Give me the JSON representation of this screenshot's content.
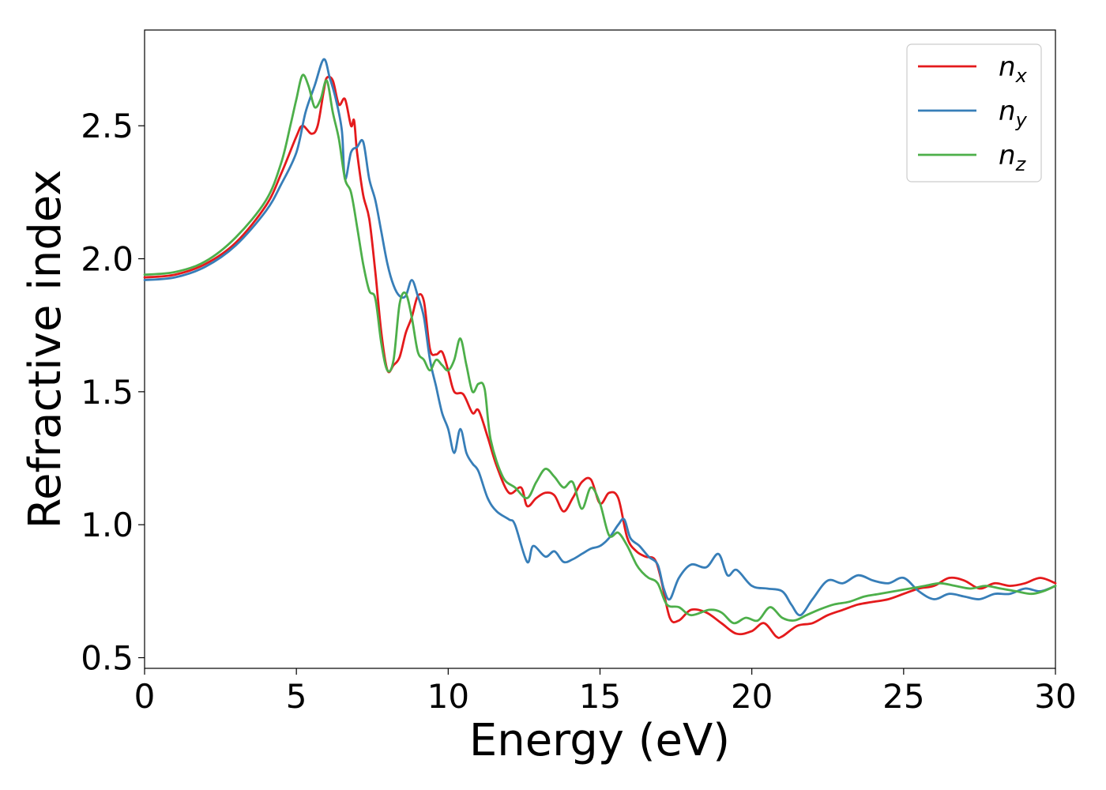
{
  "chart_data": {
    "type": "line",
    "title": "",
    "xlabel": "Energy (eV)",
    "ylabel": "Refractive index",
    "xlim": [
      0,
      30
    ],
    "ylim": [
      0.46,
      2.86
    ],
    "xticks": [
      0,
      5,
      10,
      15,
      20,
      25,
      30
    ],
    "yticks": [
      0.5,
      1.0,
      1.5,
      2.0,
      2.5
    ],
    "xtick_labels": [
      "0",
      "5",
      "10",
      "15",
      "20",
      "25",
      "30"
    ],
    "ytick_labels": [
      "0.5",
      "1.0",
      "1.5",
      "2.0",
      "2.5"
    ],
    "grid": false,
    "legend_position": "top-right",
    "series": [
      {
        "name": "n",
        "subscript": "x",
        "color": "#e41a1c",
        "points": [
          [
            0,
            1.93
          ],
          [
            1,
            1.94
          ],
          [
            2,
            1.98
          ],
          [
            3,
            2.06
          ],
          [
            4,
            2.2
          ],
          [
            4.5,
            2.32
          ],
          [
            5,
            2.46
          ],
          [
            5.2,
            2.5
          ],
          [
            5.5,
            2.47
          ],
          [
            5.7,
            2.5
          ],
          [
            5.9,
            2.63
          ],
          [
            6,
            2.68
          ],
          [
            6.2,
            2.67
          ],
          [
            6.4,
            2.58
          ],
          [
            6.6,
            2.6
          ],
          [
            6.8,
            2.5
          ],
          [
            6.9,
            2.52
          ],
          [
            7,
            2.4
          ],
          [
            7.2,
            2.24
          ],
          [
            7.4,
            2.15
          ],
          [
            7.6,
            1.95
          ],
          [
            7.8,
            1.72
          ],
          [
            8.0,
            1.58
          ],
          [
            8.2,
            1.6
          ],
          [
            8.4,
            1.63
          ],
          [
            8.6,
            1.72
          ],
          [
            8.8,
            1.78
          ],
          [
            9.0,
            1.86
          ],
          [
            9.2,
            1.84
          ],
          [
            9.4,
            1.66
          ],
          [
            9.6,
            1.64
          ],
          [
            9.8,
            1.65
          ],
          [
            10.0,
            1.58
          ],
          [
            10.2,
            1.5
          ],
          [
            10.5,
            1.49
          ],
          [
            10.8,
            1.42
          ],
          [
            11.0,
            1.43
          ],
          [
            11.3,
            1.33
          ],
          [
            11.6,
            1.22
          ],
          [
            12.0,
            1.12
          ],
          [
            12.4,
            1.14
          ],
          [
            12.6,
            1.07
          ],
          [
            12.9,
            1.1
          ],
          [
            13.2,
            1.12
          ],
          [
            13.5,
            1.11
          ],
          [
            13.8,
            1.05
          ],
          [
            14.1,
            1.1
          ],
          [
            14.4,
            1.16
          ],
          [
            14.7,
            1.17
          ],
          [
            15.0,
            1.08
          ],
          [
            15.3,
            1.12
          ],
          [
            15.6,
            1.1
          ],
          [
            15.9,
            0.95
          ],
          [
            16.2,
            0.9
          ],
          [
            16.5,
            0.88
          ],
          [
            16.8,
            0.87
          ],
          [
            17.0,
            0.8
          ],
          [
            17.3,
            0.65
          ],
          [
            17.6,
            0.64
          ],
          [
            18.0,
            0.68
          ],
          [
            18.5,
            0.67
          ],
          [
            19.0,
            0.63
          ],
          [
            19.5,
            0.59
          ],
          [
            20.0,
            0.6
          ],
          [
            20.4,
            0.63
          ],
          [
            20.8,
            0.58
          ],
          [
            21.0,
            0.58
          ],
          [
            21.5,
            0.62
          ],
          [
            22.0,
            0.63
          ],
          [
            22.5,
            0.66
          ],
          [
            23.0,
            0.68
          ],
          [
            23.5,
            0.7
          ],
          [
            24.0,
            0.71
          ],
          [
            24.5,
            0.72
          ],
          [
            25.0,
            0.74
          ],
          [
            25.5,
            0.76
          ],
          [
            26.0,
            0.77
          ],
          [
            26.5,
            0.8
          ],
          [
            27.0,
            0.79
          ],
          [
            27.5,
            0.76
          ],
          [
            28.0,
            0.78
          ],
          [
            28.5,
            0.77
          ],
          [
            29.0,
            0.78
          ],
          [
            29.5,
            0.8
          ],
          [
            30.0,
            0.78
          ]
        ]
      },
      {
        "name": "n",
        "subscript": "y",
        "color": "#377eb8",
        "points": [
          [
            0,
            1.92
          ],
          [
            1,
            1.93
          ],
          [
            2,
            1.97
          ],
          [
            3,
            2.05
          ],
          [
            4,
            2.18
          ],
          [
            4.5,
            2.28
          ],
          [
            5,
            2.4
          ],
          [
            5.3,
            2.55
          ],
          [
            5.6,
            2.65
          ],
          [
            5.9,
            2.75
          ],
          [
            6.1,
            2.68
          ],
          [
            6.3,
            2.6
          ],
          [
            6.5,
            2.48
          ],
          [
            6.6,
            2.3
          ],
          [
            6.8,
            2.4
          ],
          [
            7.0,
            2.42
          ],
          [
            7.2,
            2.44
          ],
          [
            7.4,
            2.3
          ],
          [
            7.6,
            2.22
          ],
          [
            7.8,
            2.1
          ],
          [
            8.0,
            1.98
          ],
          [
            8.2,
            1.9
          ],
          [
            8.4,
            1.86
          ],
          [
            8.6,
            1.86
          ],
          [
            8.8,
            1.92
          ],
          [
            9.0,
            1.86
          ],
          [
            9.2,
            1.78
          ],
          [
            9.4,
            1.62
          ],
          [
            9.6,
            1.52
          ],
          [
            9.8,
            1.42
          ],
          [
            10.0,
            1.36
          ],
          [
            10.2,
            1.27
          ],
          [
            10.4,
            1.36
          ],
          [
            10.6,
            1.27
          ],
          [
            10.8,
            1.23
          ],
          [
            11.0,
            1.2
          ],
          [
            11.3,
            1.1
          ],
          [
            11.6,
            1.05
          ],
          [
            12.0,
            1.02
          ],
          [
            12.2,
            1.0
          ],
          [
            12.6,
            0.86
          ],
          [
            12.8,
            0.92
          ],
          [
            13.2,
            0.88
          ],
          [
            13.5,
            0.9
          ],
          [
            13.8,
            0.86
          ],
          [
            14.1,
            0.87
          ],
          [
            14.4,
            0.89
          ],
          [
            14.7,
            0.91
          ],
          [
            15.0,
            0.92
          ],
          [
            15.3,
            0.95
          ],
          [
            15.6,
            1.0
          ],
          [
            15.8,
            1.02
          ],
          [
            16.0,
            0.95
          ],
          [
            16.3,
            0.92
          ],
          [
            16.6,
            0.88
          ],
          [
            16.9,
            0.85
          ],
          [
            17.1,
            0.76
          ],
          [
            17.3,
            0.72
          ],
          [
            17.6,
            0.8
          ],
          [
            18.0,
            0.85
          ],
          [
            18.5,
            0.84
          ],
          [
            18.9,
            0.89
          ],
          [
            19.2,
            0.81
          ],
          [
            19.5,
            0.83
          ],
          [
            20.0,
            0.77
          ],
          [
            20.5,
            0.76
          ],
          [
            21.0,
            0.75
          ],
          [
            21.3,
            0.7
          ],
          [
            21.6,
            0.66
          ],
          [
            22.0,
            0.72
          ],
          [
            22.5,
            0.79
          ],
          [
            23.0,
            0.78
          ],
          [
            23.5,
            0.81
          ],
          [
            24.0,
            0.79
          ],
          [
            24.5,
            0.78
          ],
          [
            25.0,
            0.8
          ],
          [
            25.5,
            0.75
          ],
          [
            26.0,
            0.72
          ],
          [
            26.5,
            0.74
          ],
          [
            27.0,
            0.73
          ],
          [
            27.5,
            0.72
          ],
          [
            28.0,
            0.74
          ],
          [
            28.5,
            0.74
          ],
          [
            29.0,
            0.76
          ],
          [
            29.5,
            0.75
          ],
          [
            30.0,
            0.77
          ]
        ]
      },
      {
        "name": "n",
        "subscript": "z",
        "color": "#4daf4a",
        "points": [
          [
            0,
            1.94
          ],
          [
            1,
            1.95
          ],
          [
            2,
            1.99
          ],
          [
            3,
            2.08
          ],
          [
            4,
            2.22
          ],
          [
            4.5,
            2.36
          ],
          [
            4.8,
            2.5
          ],
          [
            5.0,
            2.6
          ],
          [
            5.2,
            2.69
          ],
          [
            5.4,
            2.65
          ],
          [
            5.6,
            2.57
          ],
          [
            5.8,
            2.6
          ],
          [
            6.0,
            2.67
          ],
          [
            6.2,
            2.55
          ],
          [
            6.4,
            2.45
          ],
          [
            6.6,
            2.3
          ],
          [
            6.8,
            2.25
          ],
          [
            7.0,
            2.12
          ],
          [
            7.2,
            1.98
          ],
          [
            7.4,
            1.88
          ],
          [
            7.6,
            1.85
          ],
          [
            7.8,
            1.68
          ],
          [
            8.0,
            1.58
          ],
          [
            8.2,
            1.62
          ],
          [
            8.4,
            1.83
          ],
          [
            8.6,
            1.87
          ],
          [
            8.8,
            1.78
          ],
          [
            9.0,
            1.65
          ],
          [
            9.2,
            1.62
          ],
          [
            9.4,
            1.58
          ],
          [
            9.6,
            1.62
          ],
          [
            9.8,
            1.6
          ],
          [
            10.0,
            1.58
          ],
          [
            10.2,
            1.62
          ],
          [
            10.4,
            1.7
          ],
          [
            10.6,
            1.6
          ],
          [
            10.8,
            1.5
          ],
          [
            11.0,
            1.53
          ],
          [
            11.2,
            1.51
          ],
          [
            11.4,
            1.32
          ],
          [
            11.8,
            1.18
          ],
          [
            12.2,
            1.14
          ],
          [
            12.6,
            1.1
          ],
          [
            12.9,
            1.16
          ],
          [
            13.2,
            1.21
          ],
          [
            13.5,
            1.18
          ],
          [
            13.8,
            1.14
          ],
          [
            14.1,
            1.16
          ],
          [
            14.4,
            1.06
          ],
          [
            14.7,
            1.14
          ],
          [
            15.0,
            1.08
          ],
          [
            15.3,
            0.96
          ],
          [
            15.6,
            0.97
          ],
          [
            15.9,
            0.92
          ],
          [
            16.2,
            0.85
          ],
          [
            16.4,
            0.82
          ],
          [
            16.6,
            0.8
          ],
          [
            16.9,
            0.78
          ],
          [
            17.2,
            0.7
          ],
          [
            17.6,
            0.69
          ],
          [
            18.0,
            0.66
          ],
          [
            18.6,
            0.68
          ],
          [
            19.0,
            0.67
          ],
          [
            19.4,
            0.63
          ],
          [
            19.8,
            0.65
          ],
          [
            20.2,
            0.64
          ],
          [
            20.6,
            0.69
          ],
          [
            21.0,
            0.65
          ],
          [
            21.4,
            0.64
          ],
          [
            21.8,
            0.66
          ],
          [
            22.2,
            0.68
          ],
          [
            22.7,
            0.7
          ],
          [
            23.2,
            0.71
          ],
          [
            23.7,
            0.73
          ],
          [
            24.2,
            0.74
          ],
          [
            24.7,
            0.75
          ],
          [
            25.2,
            0.76
          ],
          [
            25.7,
            0.77
          ],
          [
            26.2,
            0.78
          ],
          [
            26.7,
            0.77
          ],
          [
            27.2,
            0.76
          ],
          [
            27.7,
            0.77
          ],
          [
            28.2,
            0.76
          ],
          [
            28.7,
            0.75
          ],
          [
            29.2,
            0.74
          ],
          [
            29.6,
            0.75
          ],
          [
            30.0,
            0.77
          ]
        ]
      }
    ]
  }
}
